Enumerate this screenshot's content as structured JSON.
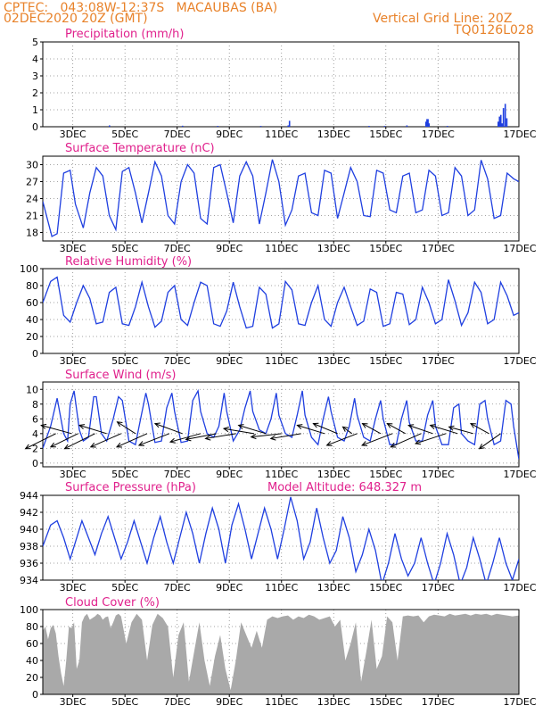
{
  "header": {
    "line1": "CPTEC:   043:08W-12:37S   MACAUBAS (BA)",
    "line2_left": "02DEC2020 20Z (GMT)",
    "line2_right": "Vertical Grid Line: 20Z",
    "line3_right": "TQ0126L028"
  },
  "colors": {
    "header": "#e8822a",
    "title": "#e0208c",
    "series": "#1f3fe0",
    "cloud": "#a9a9a9",
    "wind_arrow": "#000000"
  },
  "x_axis": {
    "start": "02DEC2020 20Z",
    "end": "17DEC2020 00Z",
    "tick_labels": [
      "3DEC",
      "5DEC",
      "7DEC",
      "9DEC",
      "11DEC",
      "13DEC",
      "15DEC",
      "17DEC"
    ]
  },
  "chart_data": [
    {
      "type": "bar",
      "title": "Precipitation (mm/h)",
      "ylim": [
        0,
        5
      ],
      "yticks": [
        "0",
        "1",
        "2",
        "3",
        "4",
        "5"
      ],
      "grid": true,
      "x_unit": "days since 02DEC2020 20Z",
      "points": [
        {
          "x": 2.55,
          "y": 0.08
        },
        {
          "x": 5.35,
          "y": 0.06
        },
        {
          "x": 6.7,
          "y": 0.05
        },
        {
          "x": 8.35,
          "y": 0.05
        },
        {
          "x": 9.4,
          "y": 0.08
        },
        {
          "x": 9.45,
          "y": 0.35
        },
        {
          "x": 12.5,
          "y": 0.05
        },
        {
          "x": 13.1,
          "y": 0.05
        },
        {
          "x": 13.95,
          "y": 0.08
        },
        {
          "x": 14.68,
          "y": 0.3
        },
        {
          "x": 14.72,
          "y": 0.45
        },
        {
          "x": 14.76,
          "y": 0.45
        },
        {
          "x": 14.8,
          "y": 0.2
        },
        {
          "x": 15.5,
          "y": 0.05
        },
        {
          "x": 17.45,
          "y": 0.3
        },
        {
          "x": 17.5,
          "y": 0.6
        },
        {
          "x": 17.55,
          "y": 0.7
        },
        {
          "x": 17.6,
          "y": 0.2
        },
        {
          "x": 17.65,
          "y": 1.1
        },
        {
          "x": 17.72,
          "y": 1.35
        },
        {
          "x": 17.78,
          "y": 0.5
        }
      ]
    },
    {
      "type": "line",
      "title": "Surface Temperature (nC)",
      "ylim": [
        16.5,
        31.5
      ],
      "yticks": [
        "18",
        "21",
        "24",
        "27",
        "30"
      ],
      "ytick_values": [
        18,
        21,
        24,
        27,
        30
      ],
      "grid": true,
      "x_unit": "days since 02DEC2020 20Z",
      "x": [
        0,
        0.35,
        0.55,
        0.8,
        1.05,
        1.25,
        1.55,
        1.8,
        2.05,
        2.3,
        2.55,
        2.8,
        3.05,
        3.3,
        3.55,
        3.8,
        4.05,
        4.3,
        4.55,
        4.8,
        5.05,
        5.3,
        5.55,
        5.8,
        6.05,
        6.3,
        6.55,
        6.8,
        7.05,
        7.3,
        7.55,
        7.8,
        8.05,
        8.3,
        8.55,
        8.8,
        9.05,
        9.3,
        9.55,
        9.8,
        10.05,
        10.3,
        10.55,
        10.8,
        11.05,
        11.3,
        11.55,
        11.8,
        12.05,
        12.3,
        12.55,
        12.8,
        13.05,
        13.3,
        13.55,
        13.8,
        14.05,
        14.3,
        14.55,
        14.8,
        15.05,
        15.3,
        15.55,
        15.8,
        16.05,
        16.3,
        16.55,
        16.8,
        17.05,
        17.3,
        17.55,
        17.8,
        18.05,
        18.25
      ],
      "values": [
        23.5,
        17.3,
        17.8,
        28.5,
        29.0,
        23.0,
        18.8,
        25.0,
        29.5,
        28.0,
        21.0,
        18.5,
        28.8,
        29.5,
        25.0,
        19.7,
        25.0,
        30.5,
        28.0,
        21.0,
        19.5,
        27.0,
        30.0,
        28.5,
        20.5,
        19.5,
        29.5,
        30.0,
        25.0,
        19.7,
        28.0,
        30.5,
        28.0,
        19.5,
        25.0,
        30.9,
        27.0,
        19.3,
        22.0,
        28.0,
        28.5,
        21.5,
        21.0,
        29.0,
        28.5,
        20.5,
        25.0,
        29.5,
        27.0,
        21.0,
        20.8,
        29.0,
        28.5,
        22.0,
        21.5,
        28.0,
        28.5,
        21.5,
        22.0,
        29.0,
        28.0,
        21.0,
        21.5,
        29.5,
        28.0,
        21.0,
        22.0,
        30.8,
        27.5,
        20.5,
        21.0,
        28.5,
        27.5,
        27.0
      ]
    },
    {
      "type": "line",
      "title": "Relative Humidity (%)",
      "ylim": [
        0,
        100
      ],
      "yticks": [
        "0",
        "20",
        "40",
        "60",
        "80",
        "100"
      ],
      "ytick_values": [
        0,
        20,
        40,
        60,
        80,
        100
      ],
      "grid": true,
      "x_unit": "days since 02DEC2020 20Z",
      "x": [
        0,
        0.3,
        0.55,
        0.8,
        1.05,
        1.3,
        1.55,
        1.8,
        2.05,
        2.3,
        2.55,
        2.8,
        3.05,
        3.3,
        3.55,
        3.8,
        4.05,
        4.3,
        4.55,
        4.8,
        5.05,
        5.3,
        5.55,
        5.8,
        6.05,
        6.3,
        6.55,
        6.8,
        7.05,
        7.3,
        7.55,
        7.8,
        8.05,
        8.3,
        8.55,
        8.8,
        9.05,
        9.3,
        9.55,
        9.8,
        10.05,
        10.3,
        10.55,
        10.8,
        11.05,
        11.3,
        11.55,
        11.8,
        12.05,
        12.3,
        12.55,
        12.8,
        13.05,
        13.3,
        13.55,
        13.8,
        14.05,
        14.3,
        14.55,
        14.8,
        15.05,
        15.3,
        15.55,
        15.8,
        16.05,
        16.3,
        16.55,
        16.8,
        17.05,
        17.3,
        17.55,
        17.8,
        18.05,
        18.25
      ],
      "values": [
        60,
        85,
        90,
        45,
        37,
        60,
        80,
        65,
        35,
        37,
        72,
        78,
        35,
        33,
        55,
        84,
        55,
        31,
        38,
        72,
        80,
        40,
        33,
        60,
        84,
        80,
        35,
        32,
        50,
        84,
        55,
        30,
        32,
        78,
        70,
        30,
        35,
        85,
        75,
        35,
        33,
        60,
        80,
        40,
        32,
        60,
        78,
        55,
        33,
        38,
        76,
        72,
        32,
        35,
        72,
        70,
        34,
        40,
        78,
        60,
        35,
        40,
        87,
        62,
        33,
        48,
        84,
        72,
        35,
        40,
        84,
        68,
        45,
        48
      ]
    },
    {
      "type": "line",
      "title": "Surface Wind (m/s)",
      "ylim": [
        -0.5,
        11
      ],
      "yticks": [
        "0",
        "2",
        "4",
        "6",
        "8",
        "10"
      ],
      "ytick_values": [
        0,
        2,
        4,
        6,
        8,
        10
      ],
      "grid": true,
      "x_unit": "days since 02DEC2020 20Z",
      "x": [
        0,
        0.3,
        0.55,
        0.8,
        0.95,
        1.05,
        1.2,
        1.4,
        1.55,
        1.75,
        1.95,
        2.05,
        2.25,
        2.45,
        2.7,
        2.9,
        3.05,
        3.3,
        3.55,
        3.75,
        3.95,
        4.05,
        4.3,
        4.55,
        4.75,
        4.95,
        5.05,
        5.3,
        5.55,
        5.75,
        5.95,
        6.05,
        6.3,
        6.55,
        6.75,
        6.95,
        7.05,
        7.3,
        7.55,
        7.75,
        7.95,
        8.05,
        8.3,
        8.55,
        8.75,
        8.95,
        9.05,
        9.3,
        9.55,
        9.75,
        9.95,
        10.05,
        10.3,
        10.55,
        10.75,
        10.95,
        11.05,
        11.3,
        11.55,
        11.75,
        11.95,
        12.05,
        12.3,
        12.55,
        12.75,
        12.95,
        13.05,
        13.3,
        13.55,
        13.75,
        13.95,
        14.05,
        14.3,
        14.55,
        14.75,
        14.95,
        15.05,
        15.3,
        15.55,
        15.75,
        15.95,
        16.05,
        16.3,
        16.55,
        16.75,
        16.95,
        17.05,
        17.3,
        17.55,
        17.75,
        17.95,
        18.05,
        18.25
      ],
      "values": [
        2.0,
        5.0,
        8.8,
        4.0,
        3.0,
        8.0,
        9.8,
        4.5,
        3.0,
        3.5,
        9.0,
        9.0,
        4.0,
        3.0,
        6.0,
        9.0,
        8.5,
        3.0,
        2.5,
        6.0,
        9.5,
        8.0,
        2.8,
        3.0,
        7.5,
        9.5,
        7.0,
        2.8,
        3.0,
        8.5,
        9.8,
        7.0,
        4.0,
        3.5,
        5.0,
        9.5,
        7.0,
        3.0,
        4.5,
        7.5,
        9.8,
        7.0,
        4.5,
        4.0,
        6.0,
        9.5,
        6.5,
        4.0,
        3.5,
        6.5,
        9.8,
        6.5,
        3.5,
        2.5,
        6.0,
        9.0,
        7.0,
        3.5,
        3.0,
        5.0,
        8.8,
        6.5,
        3.5,
        3.0,
        6.0,
        8.5,
        6.0,
        2.5,
        2.5,
        6.0,
        8.5,
        5.5,
        3.0,
        3.0,
        6.5,
        8.5,
        5.0,
        2.5,
        2.5,
        7.5,
        8.0,
        4.0,
        3.0,
        2.5,
        8.0,
        8.5,
        6.0,
        2.5,
        3.0,
        8.5,
        8.0,
        5.0,
        0.5
      ]
    },
    {
      "type": "line",
      "title": "Surface Pressure (hPa)",
      "subtitle": "Model Altitude: 648.327 m",
      "ylim": [
        934,
        944
      ],
      "yticks": [
        "934",
        "936",
        "938",
        "940",
        "942",
        "944"
      ],
      "ytick_values": [
        934,
        936,
        938,
        940,
        942,
        944
      ],
      "grid": true,
      "x_unit": "days since 02DEC2020 20Z",
      "x": [
        0,
        0.3,
        0.55,
        0.8,
        1.05,
        1.25,
        1.5,
        1.75,
        2.0,
        2.25,
        2.5,
        2.75,
        3.0,
        3.25,
        3.5,
        3.75,
        4.0,
        4.25,
        4.5,
        4.75,
        5.0,
        5.25,
        5.5,
        5.75,
        6.0,
        6.25,
        6.5,
        6.75,
        7.0,
        7.25,
        7.5,
        7.75,
        8.0,
        8.25,
        8.5,
        8.75,
        9.0,
        9.25,
        9.5,
        9.75,
        10.0,
        10.25,
        10.5,
        10.75,
        11.0,
        11.25,
        11.5,
        11.75,
        12.0,
        12.25,
        12.5,
        12.75,
        13.0,
        13.25,
        13.5,
        13.75,
        14.0,
        14.25,
        14.5,
        14.75,
        15.0,
        15.25,
        15.5,
        15.75,
        16.0,
        16.25,
        16.5,
        16.75,
        17.0,
        17.25,
        17.5,
        17.75,
        18.0,
        18.25
      ],
      "values": [
        938.0,
        940.5,
        941.0,
        939.0,
        936.5,
        938.5,
        941.0,
        939.0,
        937.0,
        939.5,
        941.5,
        939.0,
        936.5,
        938.5,
        941.0,
        938.5,
        936.0,
        939.0,
        941.5,
        938.5,
        936.0,
        939.0,
        942.0,
        939.5,
        936.0,
        939.5,
        942.5,
        940.0,
        936.0,
        940.5,
        943.0,
        940.0,
        936.5,
        939.5,
        942.5,
        940.0,
        936.5,
        940.0,
        943.8,
        941.0,
        936.5,
        938.5,
        942.5,
        939.0,
        936.0,
        937.5,
        941.5,
        939.0,
        935.0,
        937.0,
        940.0,
        937.5,
        933.5,
        936.0,
        939.5,
        936.5,
        934.5,
        936.0,
        939.0,
        936.0,
        933.5,
        936.0,
        939.5,
        937.0,
        933.5,
        935.5,
        939.0,
        936.5,
        933.5,
        936.0,
        939.0,
        936.0,
        934.0,
        936.5
      ]
    },
    {
      "type": "area",
      "title": "Cloud Cover (%)",
      "ylim": [
        0,
        100
      ],
      "yticks": [
        "0",
        "20",
        "40",
        "60",
        "80",
        "100"
      ],
      "ytick_values": [
        0,
        20,
        40,
        60,
        80,
        100
      ],
      "grid": true,
      "x_unit": "days since 02DEC2020 20Z",
      "x": [
        0,
        0.1,
        0.2,
        0.3,
        0.4,
        0.5,
        0.6,
        0.7,
        0.8,
        0.9,
        1.0,
        1.1,
        1.2,
        1.3,
        1.4,
        1.5,
        1.6,
        1.7,
        1.8,
        1.9,
        2.0,
        2.1,
        2.2,
        2.3,
        2.4,
        2.5,
        2.6,
        2.7,
        2.8,
        2.9,
        3.0,
        3.2,
        3.4,
        3.6,
        3.8,
        4.0,
        4.2,
        4.4,
        4.6,
        4.8,
        5.0,
        5.2,
        5.4,
        5.6,
        5.8,
        6.0,
        6.2,
        6.4,
        6.6,
        6.8,
        7.0,
        7.2,
        7.4,
        7.6,
        7.8,
        8.0,
        8.2,
        8.4,
        8.6,
        8.8,
        9.0,
        9.2,
        9.4,
        9.6,
        9.8,
        10.0,
        10.2,
        10.4,
        10.6,
        10.8,
        11.0,
        11.2,
        11.4,
        11.6,
        11.8,
        12.0,
        12.2,
        12.4,
        12.6,
        12.8,
        13.0,
        13.2,
        13.4,
        13.6,
        13.8,
        14.0,
        14.2,
        14.4,
        14.6,
        14.8,
        15.0,
        15.2,
        15.4,
        15.6,
        15.8,
        16.0,
        16.2,
        16.4,
        16.6,
        16.8,
        17.0,
        17.2,
        17.4,
        17.6,
        17.8,
        18.0,
        18.25
      ],
      "values": [
        75,
        80,
        65,
        78,
        82,
        72,
        45,
        25,
        10,
        40,
        80,
        78,
        85,
        30,
        40,
        85,
        92,
        95,
        88,
        90,
        92,
        95,
        93,
        88,
        91,
        92,
        78,
        85,
        93,
        95,
        92,
        60,
        85,
        95,
        88,
        40,
        82,
        95,
        90,
        80,
        20,
        70,
        85,
        15,
        50,
        85,
        40,
        10,
        45,
        70,
        30,
        5,
        40,
        85,
        70,
        55,
        75,
        55,
        88,
        92,
        90,
        92,
        93,
        88,
        92,
        90,
        94,
        92,
        88,
        90,
        92,
        80,
        88,
        40,
        60,
        85,
        15,
        50,
        88,
        30,
        45,
        92,
        85,
        40,
        92,
        93,
        92,
        93,
        85,
        92,
        94,
        93,
        92,
        95,
        93,
        94,
        95,
        93,
        95,
        94,
        95,
        93,
        95,
        94,
        93,
        92,
        93
      ]
    }
  ],
  "wind_vectors": [
    {
      "x": 0.5,
      "u": -1.0,
      "v": -0.9
    },
    {
      "x": 1.1,
      "u": -1.0,
      "v": 0.5
    },
    {
      "x": 1.35,
      "u": -0.9,
      "v": -0.8
    },
    {
      "x": 2.0,
      "u": -1.0,
      "v": -0.9
    },
    {
      "x": 2.45,
      "u": -0.9,
      "v": 0.5
    },
    {
      "x": 3.0,
      "u": -1.0,
      "v": -0.8
    },
    {
      "x": 3.55,
      "u": -0.6,
      "v": 0.7
    },
    {
      "x": 4.0,
      "u": -1.0,
      "v": -0.8
    },
    {
      "x": 4.85,
      "u": -1.0,
      "v": -0.7
    },
    {
      "x": 5.35,
      "u": -0.9,
      "v": 0.6
    },
    {
      "x": 6.05,
      "u": -1.0,
      "v": -0.5
    },
    {
      "x": 6.65,
      "u": -1.0,
      "v": -0.35
    },
    {
      "x": 7.4,
      "u": -1.0,
      "v": -0.3
    },
    {
      "x": 8.1,
      "u": -1.0,
      "v": 0.3
    },
    {
      "x": 8.55,
      "u": -0.9,
      "v": 0.5
    },
    {
      "x": 9.15,
      "u": -1.0,
      "v": -0.2
    },
    {
      "x": 9.9,
      "u": -1.0,
      "v": -0.3
    },
    {
      "x": 10.8,
      "u": -0.9,
      "v": 0.5
    },
    {
      "x": 11.3,
      "u": -0.8,
      "v": 0.6
    },
    {
      "x": 11.85,
      "u": -0.3,
      "v": 0.4
    },
    {
      "x": 12.05,
      "u": -1.0,
      "v": -0.7
    },
    {
      "x": 12.95,
      "u": -0.6,
      "v": 0.6
    },
    {
      "x": 13.4,
      "u": -1.0,
      "v": -0.7
    },
    {
      "x": 13.9,
      "u": -0.6,
      "v": 0.6
    },
    {
      "x": 14.5,
      "u": -1.0,
      "v": -0.8
    },
    {
      "x": 14.95,
      "u": -0.8,
      "v": 0.5
    },
    {
      "x": 15.45,
      "u": -1.0,
      "v": -0.6
    },
    {
      "x": 15.9,
      "u": -0.9,
      "v": 0.5
    },
    {
      "x": 16.5,
      "u": -0.8,
      "v": 0.4
    },
    {
      "x": 17.1,
      "u": -0.6,
      "v": 0.6
    },
    {
      "x": 17.55,
      "u": -0.7,
      "v": -0.9
    }
  ]
}
